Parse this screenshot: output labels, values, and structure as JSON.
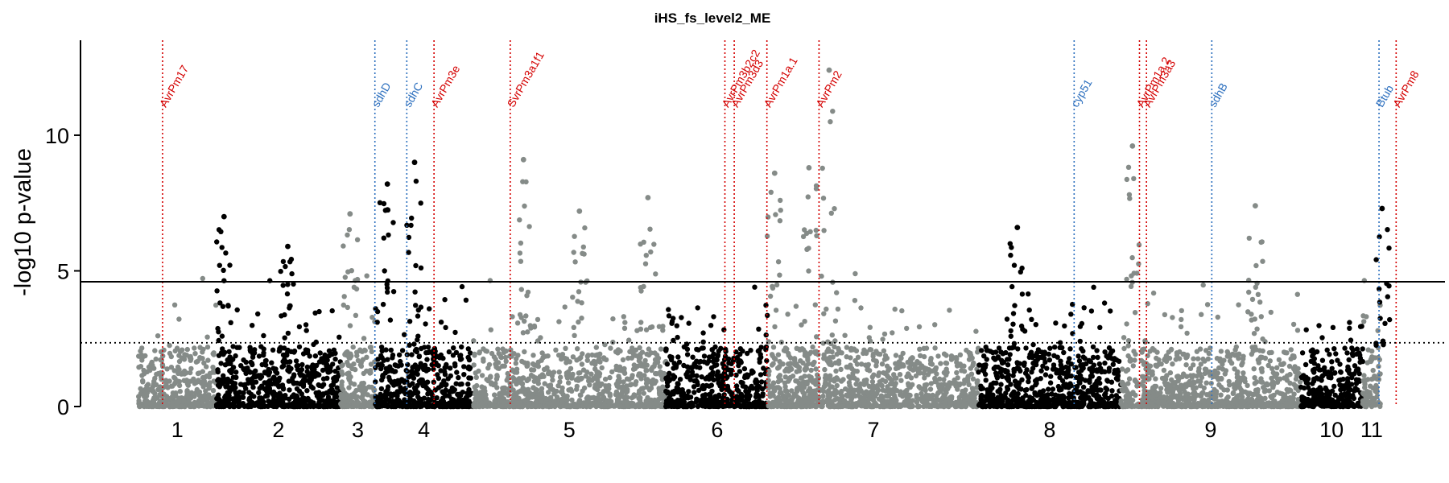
{
  "chart_data": {
    "type": "scatter",
    "title": "iHS_fs_level2_ME",
    "ylabel": "-log10 p-value",
    "xlabel": "",
    "ylim": [
      0,
      13.5
    ],
    "yticks": [
      0,
      5,
      10
    ],
    "grid": false,
    "legend": "none",
    "colors": {
      "odd": "#000000",
      "even": "#858b88",
      "effector": "#d40000",
      "fungicide": "#2c6fbe"
    },
    "thresholds": [
      {
        "y": 4.6,
        "style": "solid"
      },
      {
        "y": 2.35,
        "style": "dotted"
      }
    ],
    "chromosomes": [
      {
        "label": "1",
        "start": 0.0,
        "end": 1.0
      },
      {
        "label": "2",
        "start": 1.0,
        "end": 2.6
      },
      {
        "label": "3",
        "start": 2.6,
        "end": 3.04
      },
      {
        "label": "4",
        "start": 3.04,
        "end": 4.3
      },
      {
        "label": "5",
        "start": 4.3,
        "end": 6.78
      },
      {
        "label": "6",
        "start": 6.78,
        "end": 8.1
      },
      {
        "label": "7",
        "start": 8.1,
        "end": 10.8
      },
      {
        "label": "8",
        "start": 10.8,
        "end": 12.63
      },
      {
        "label": "9",
        "start": 12.63,
        "end": 14.94
      },
      {
        "label": "10",
        "start": 14.94,
        "end": 15.74
      },
      {
        "label": "11",
        "start": 15.74,
        "end": 15.97
      }
    ],
    "genes": [
      {
        "name": "AvrPm17",
        "x": 0.31,
        "type": "effector"
      },
      {
        "name": "sdhD",
        "x": 3.04,
        "type": "fungicide"
      },
      {
        "name": "sdhC",
        "x": 3.45,
        "type": "fungicide"
      },
      {
        "name": "AvrPm3e",
        "x": 3.8,
        "type": "effector"
      },
      {
        "name": "SvrPm3a1f1",
        "x": 4.78,
        "type": "effector"
      },
      {
        "name": "AvrPm3b2c2",
        "x": 7.54,
        "type": "effector"
      },
      {
        "name": "AvrPm3d3",
        "x": 7.66,
        "type": "effector"
      },
      {
        "name": "AvrPm1a.1",
        "x": 8.08,
        "type": "effector"
      },
      {
        "name": "AvrPm2",
        "x": 8.75,
        "type": "effector"
      },
      {
        "name": "cyp51",
        "x": 12.03,
        "type": "fungicide"
      },
      {
        "name": "AvrPm1a.2",
        "x": 12.87,
        "type": "effector"
      },
      {
        "name": "AvrPm3a3",
        "x": 12.96,
        "type": "effector"
      },
      {
        "name": "sdhB",
        "x": 13.8,
        "type": "fungicide"
      },
      {
        "name": "Btub",
        "x": 15.95,
        "type": "fungicide"
      },
      {
        "name": "AvrPm8",
        "x": 16.17,
        "type": "effector"
      }
    ],
    "peaks": [
      {
        "x": 1.1,
        "y": 7.0
      },
      {
        "x": 1.92,
        "y": 5.9
      },
      {
        "x": 2.72,
        "y": 7.1
      },
      {
        "x": 3.2,
        "y": 8.2
      },
      {
        "x": 3.55,
        "y": 9.0
      },
      {
        "x": 4.95,
        "y": 9.1
      },
      {
        "x": 5.67,
        "y": 7.2
      },
      {
        "x": 6.55,
        "y": 7.7
      },
      {
        "x": 8.18,
        "y": 8.6
      },
      {
        "x": 8.62,
        "y": 8.8
      },
      {
        "x": 8.88,
        "y": 12.4
      },
      {
        "x": 11.3,
        "y": 6.6
      },
      {
        "x": 12.78,
        "y": 9.6
      },
      {
        "x": 14.36,
        "y": 7.4
      },
      {
        "x": 15.99,
        "y": 7.3
      }
    ]
  }
}
